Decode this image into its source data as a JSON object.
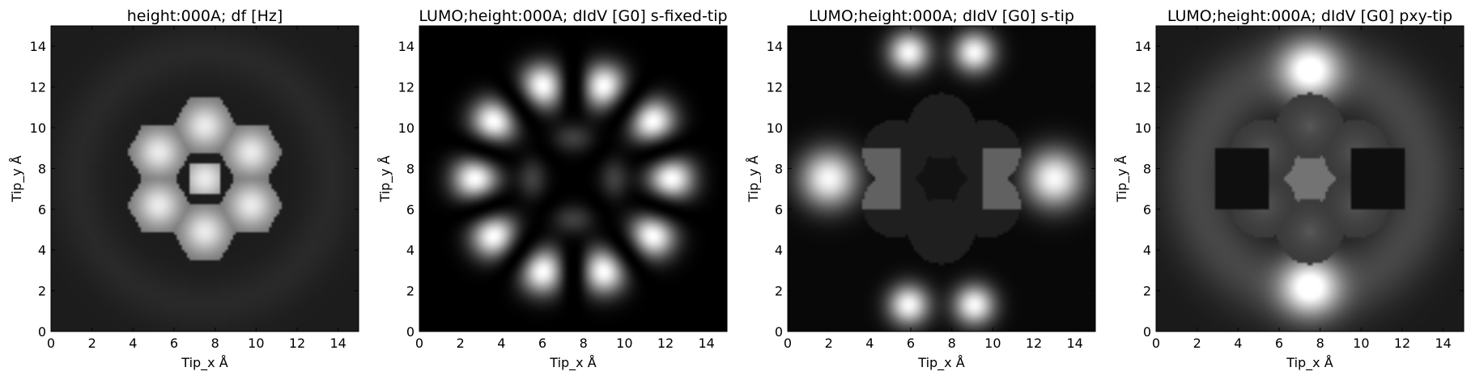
{
  "chart_data": [
    {
      "type": "heatmap",
      "title": "height:000A; df [Hz]",
      "xlabel": "Tip_x Å",
      "ylabel": "Tip_y Å",
      "xlim": [
        0,
        15
      ],
      "ylim": [
        0,
        15
      ],
      "xticks": [
        "0",
        "2",
        "4",
        "6",
        "8",
        "10",
        "12",
        "14"
      ],
      "yticks": [
        "0",
        "2",
        "4",
        "6",
        "8",
        "10",
        "12",
        "14"
      ],
      "colormap": "gray",
      "grid": false,
      "pattern": "df"
    },
    {
      "type": "heatmap",
      "title": "LUMO;height:000A; dIdV [G0] s-fixed-tip",
      "xlabel": "Tip_x Å",
      "ylabel": "Tip_y Å",
      "xlim": [
        0,
        15
      ],
      "ylim": [
        0,
        15
      ],
      "xticks": [
        "0",
        "2",
        "4",
        "6",
        "8",
        "10",
        "12",
        "14"
      ],
      "yticks": [
        "0",
        "2",
        "4",
        "6",
        "8",
        "10",
        "12",
        "14"
      ],
      "colormap": "gray",
      "grid": false,
      "pattern": "s-fixed"
    },
    {
      "type": "heatmap",
      "title": "LUMO;height:000A; dIdV [G0] s-tip",
      "xlabel": "Tip_x Å",
      "ylabel": "Tip_y Å",
      "xlim": [
        0,
        15
      ],
      "ylim": [
        0,
        15
      ],
      "xticks": [
        "0",
        "2",
        "4",
        "6",
        "8",
        "10",
        "12",
        "14"
      ],
      "yticks": [
        "0",
        "2",
        "4",
        "6",
        "8",
        "10",
        "12",
        "14"
      ],
      "colormap": "gray",
      "grid": false,
      "pattern": "s"
    },
    {
      "type": "heatmap",
      "title": "LUMO;height:000A; dIdV [G0] pxy-tip",
      "xlabel": "Tip_x Å",
      "ylabel": "Tip_y Å",
      "xlim": [
        0,
        15
      ],
      "ylim": [
        0,
        15
      ],
      "xticks": [
        "0",
        "2",
        "4",
        "6",
        "8",
        "10",
        "12",
        "14"
      ],
      "yticks": [
        "0",
        "2",
        "4",
        "6",
        "8",
        "10",
        "12",
        "14"
      ],
      "colormap": "gray",
      "grid": false,
      "pattern": "pxy"
    }
  ]
}
